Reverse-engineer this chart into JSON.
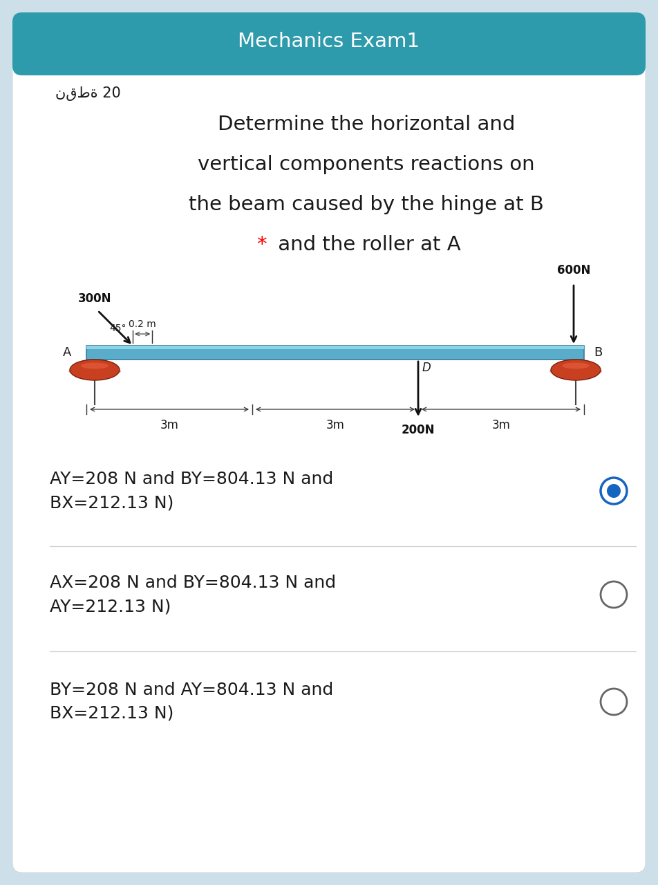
{
  "title": "Mechanics Exam1",
  "title_bg_color": "#2d9bab",
  "title_text_color": "#ffffff",
  "outer_bg_color": "#cde0ea",
  "card_bg_color": "#ffffff",
  "points_label": "نقطة 20",
  "question_lines": [
    "Determine the horizontal and",
    "vertical components reactions on",
    "the beam caused by the hinge at B",
    "* and the roller at A"
  ],
  "star_color": "#ff0000",
  "options": [
    {
      "line1": "AY=208 N and BY=804.13 N and",
      "line2": "BX=212.13 N)",
      "selected": true
    },
    {
      "line1": "AX=208 N and BY=804.13 N and",
      "line2": "AY=212.13 N)",
      "selected": false
    },
    {
      "line1": "BY=208 N and AY=804.13 N and",
      "line2": "BX=212.13 N)",
      "selected": false
    }
  ],
  "radio_selected_outer": "#1565c0",
  "radio_selected_inner": "#1565c0",
  "radio_unselected": "#666666",
  "beam_color": "#5aadca",
  "beam_edge": "#3a7a95",
  "beam_highlight": "#8dd4e8",
  "roller_color": "#c84020",
  "roller_highlight": "#e86040",
  "force_color": "#111111",
  "dim_color": "#333333",
  "text_color": "#1a1a1a"
}
